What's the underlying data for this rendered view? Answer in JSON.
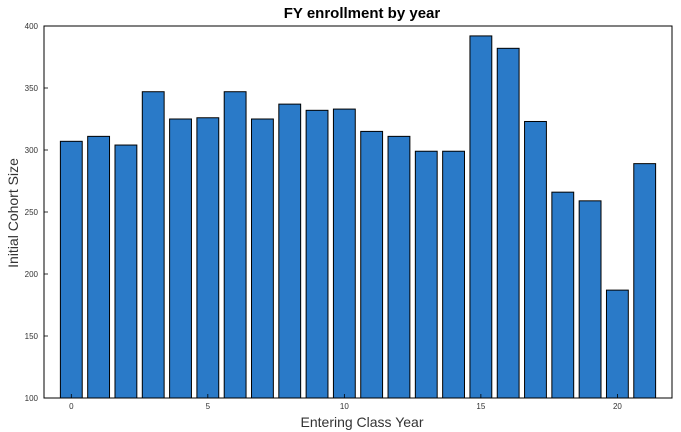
{
  "chart_data": {
    "type": "bar",
    "title": "FY enrollment by year",
    "xlabel": "Entering Class Year",
    "ylabel": "Initial Cohort Size",
    "x": [
      0,
      1,
      2,
      3,
      4,
      5,
      6,
      7,
      8,
      9,
      10,
      11,
      12,
      13,
      14,
      15,
      16,
      17,
      18,
      19,
      20,
      21
    ],
    "values": [
      307,
      311,
      304,
      347,
      325,
      326,
      347,
      325,
      337,
      332,
      333,
      315,
      311,
      299,
      299,
      392,
      382,
      323,
      266,
      259,
      187,
      289
    ],
    "xlim": [
      -1,
      22
    ],
    "ylim": [
      100,
      400
    ],
    "xticks": [
      0,
      5,
      10,
      15,
      20
    ],
    "yticks": [
      100,
      150,
      200,
      250,
      300,
      350,
      400
    ],
    "grid": false,
    "bar_color": "#2a7ac8"
  }
}
